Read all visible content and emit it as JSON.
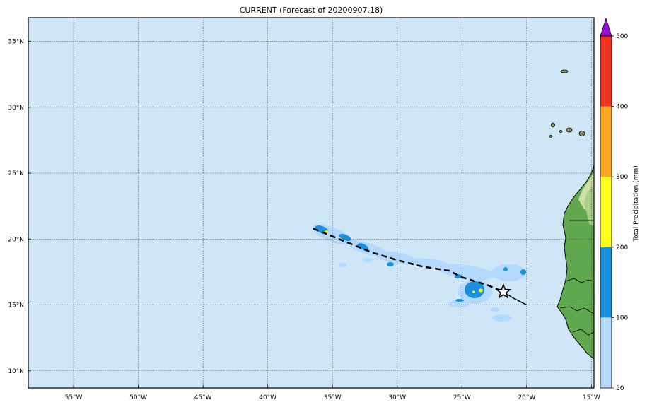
{
  "title": "CURRENT (Forecast of 20200907.18)",
  "colorbar_label": "Total Precipitation (mm)",
  "colorbar_ticks": [
    "50",
    "100",
    "200",
    "300",
    "400",
    "500"
  ],
  "colorbar_colors": [
    "#b3d9ff",
    "#1a8fdc",
    "#ffff1a",
    "#ffa724",
    "#ef3321"
  ],
  "colorbar_extend_color": "#9a0ad1",
  "ocean_color": "#cfe6f7",
  "lon_labels": [
    "55°W",
    "50°W",
    "45°W",
    "40°W",
    "35°W",
    "30°W",
    "25°W",
    "20°W",
    "15°W"
  ],
  "lat_labels": [
    "35°N",
    "30°N",
    "25°N",
    "20°N",
    "15°N",
    "10°N"
  ],
  "lon_range": [
    -58.5,
    -14.8
  ],
  "lat_range": [
    8.7,
    36.8
  ],
  "forecast_track": [
    [
      -36.5,
      20.8
    ],
    [
      -34.5,
      20.0
    ],
    [
      -32.0,
      19.0
    ],
    [
      -30.0,
      18.4
    ],
    [
      -28.0,
      17.9
    ],
    [
      -26.0,
      17.6
    ],
    [
      -25.0,
      17.1
    ],
    [
      -23.0,
      16.5
    ],
    [
      -21.8,
      16.0
    ]
  ],
  "past_track": [
    [
      -21.8,
      16.0
    ],
    [
      -21.0,
      15.5
    ],
    [
      -20.0,
      15.0
    ]
  ],
  "current_position": [
    -21.8,
    16.0
  ]
}
